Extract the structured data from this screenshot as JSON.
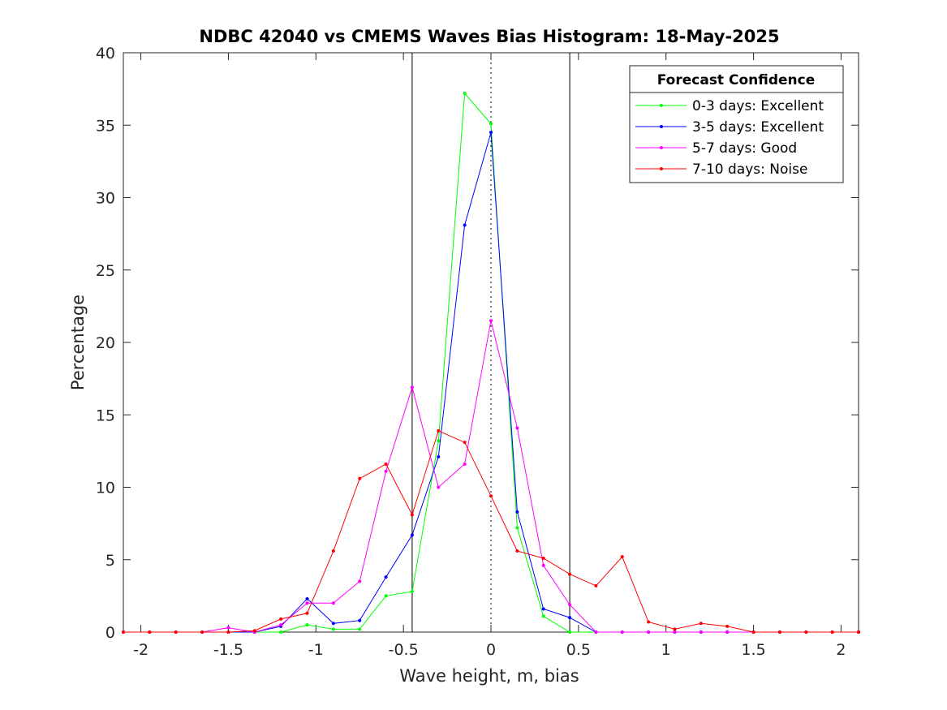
{
  "chart_data": {
    "type": "line",
    "title": "NDBC 42040 vs CMEMS Waves Bias Histogram: 18-May-2025",
    "xlabel": "Wave height, m, bias",
    "ylabel": "Percentage",
    "xlim": [
      -2.1,
      2.1
    ],
    "ylim": [
      0,
      40
    ],
    "xticks": [
      -2,
      -1.5,
      -1,
      -0.5,
      0,
      0.5,
      1,
      1.5,
      2
    ],
    "xtick_labels": [
      "-2",
      "-1.5",
      "-1",
      "-0.5",
      "0",
      "0.5",
      "1",
      "1.5",
      "2"
    ],
    "yticks": [
      0,
      5,
      10,
      15,
      20,
      25,
      30,
      35,
      40
    ],
    "ytick_labels": [
      "0",
      "5",
      "10",
      "15",
      "20",
      "25",
      "30",
      "35",
      "40"
    ],
    "grid": false,
    "reference_lines": [
      {
        "x": -0.45,
        "style": "solid",
        "color": "#000000"
      },
      {
        "x": 0,
        "style": "dotted",
        "color": "#000000"
      },
      {
        "x": 0.45,
        "style": "solid",
        "color": "#000000"
      }
    ],
    "legend": {
      "title": "Forecast Confidence",
      "position": "top-right"
    },
    "x": [
      -2.1,
      -1.95,
      -1.8,
      -1.65,
      -1.5,
      -1.35,
      -1.2,
      -1.05,
      -0.9,
      -0.75,
      -0.6,
      -0.45,
      -0.3,
      -0.15,
      0,
      0.15,
      0.3,
      0.45,
      0.6,
      0.75,
      0.9,
      1.05,
      1.2,
      1.35,
      1.5,
      1.65,
      1.8,
      1.95,
      2.1
    ],
    "series": [
      {
        "name": "0-3 days: Excellent",
        "color": "#00ff00",
        "values": [
          0,
          0,
          0,
          0,
          0,
          0,
          0,
          0.5,
          0.2,
          0.2,
          2.5,
          2.8,
          13.2,
          37.2,
          35.1,
          7.2,
          1.1,
          0,
          0,
          0,
          0,
          0,
          0,
          0,
          0,
          0,
          0,
          0,
          0
        ]
      },
      {
        "name": "3-5 days: Excellent",
        "color": "#0000ff",
        "values": [
          0,
          0,
          0,
          0,
          0,
          0,
          0.4,
          2.3,
          0.6,
          0.8,
          3.8,
          6.7,
          12.1,
          28.1,
          34.5,
          8.3,
          1.6,
          1.0,
          0,
          0,
          0,
          0,
          0,
          0,
          0,
          0,
          0,
          0,
          0
        ]
      },
      {
        "name": "5-7 days: Good",
        "color": "#ff00ff",
        "values": [
          0,
          0,
          0,
          0,
          0.3,
          0,
          0.5,
          2.0,
          2.0,
          3.5,
          11.1,
          16.9,
          10.0,
          11.6,
          21.5,
          14.1,
          4.6,
          1.9,
          0,
          0,
          0,
          0,
          0,
          0,
          0,
          0,
          0,
          0,
          0
        ]
      },
      {
        "name": "7-10 days: Noise",
        "color": "#ff0000",
        "values": [
          0,
          0,
          0,
          0,
          0,
          0.1,
          0.9,
          1.3,
          5.6,
          10.6,
          11.6,
          8.1,
          13.9,
          13.1,
          9.4,
          5.6,
          5.1,
          4.0,
          3.2,
          5.2,
          0.7,
          0.2,
          0.6,
          0.4,
          0,
          0,
          0,
          0,
          0
        ]
      }
    ]
  }
}
